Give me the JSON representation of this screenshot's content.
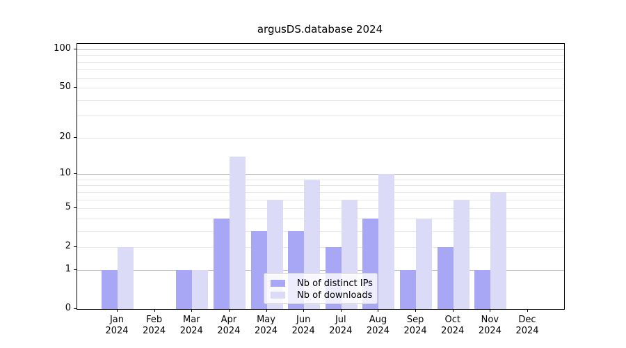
{
  "title": "argusDS.database 2024",
  "chart_data": {
    "type": "bar",
    "title": "argusDS.database 2024",
    "scale": "log1p",
    "categories": [
      "Jan",
      "Feb",
      "Mar",
      "Apr",
      "May",
      "Jun",
      "Jul",
      "Aug",
      "Sep",
      "Oct",
      "Nov",
      "Dec"
    ],
    "year_label": "2024",
    "series": [
      {
        "name": "Nb of distinct IPs",
        "color": "#a7a7f6",
        "values": [
          1,
          0,
          1,
          4,
          3,
          3,
          2,
          4,
          1,
          2,
          1,
          0
        ]
      },
      {
        "name": "Nb of downloads",
        "color": "#dbdbf8",
        "values": [
          2,
          0,
          1,
          14,
          6,
          9,
          6,
          10,
          4,
          6,
          7,
          0
        ]
      }
    ],
    "xlabel": "",
    "ylabel": "",
    "ylim": [
      0,
      110
    ],
    "y_ticks": [
      0,
      1,
      2,
      5,
      10,
      20,
      50,
      100
    ],
    "y_tick_labels": [
      "0",
      "1",
      "2",
      "5",
      "10",
      "20",
      "50",
      "100"
    ],
    "major_gridlines": [
      1,
      10,
      100
    ],
    "minor_gridlines": [
      2,
      3,
      4,
      5,
      6,
      7,
      8,
      9,
      20,
      30,
      40,
      50,
      60,
      70,
      80,
      90
    ],
    "grid": true,
    "legend_position": "lower center"
  },
  "colors": {
    "bar_distinct_ips": "#a7a7f6",
    "bar_downloads": "#dbdbf8",
    "major_grid": "#bdbdbd",
    "minor_grid": "#e7e7e7",
    "spine": "#000000",
    "background": "#ffffff"
  }
}
